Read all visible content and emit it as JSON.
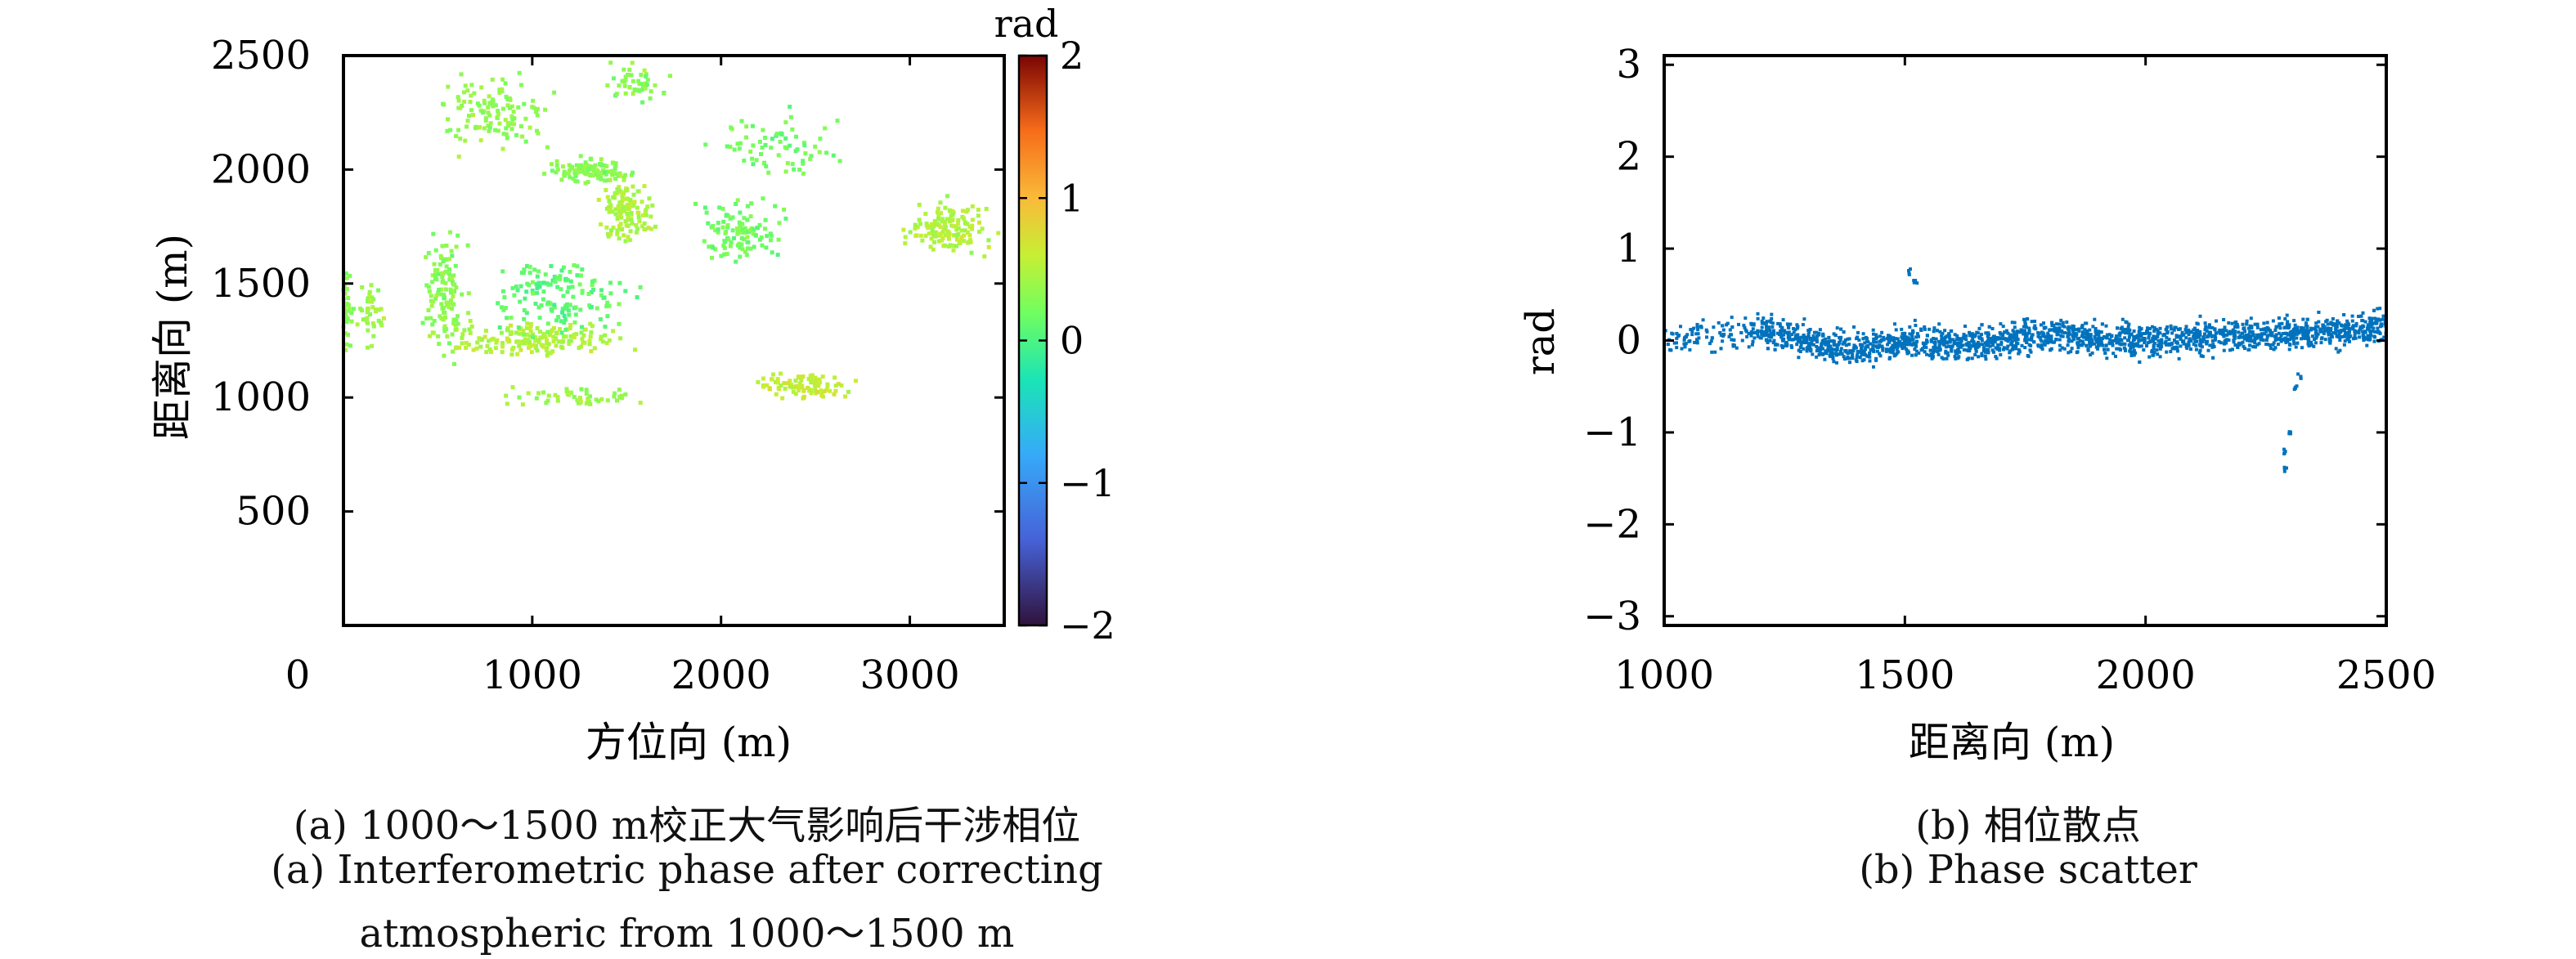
{
  "chart_data": [
    {
      "type": "scatter",
      "panel_label": "(a)",
      "xlabel": "方位向 (m)",
      "ylabel": "距离向 (m)",
      "xlim": [
        0,
        3500
      ],
      "ylim": [
        0,
        2500
      ],
      "x_ticks": [
        "0",
        "1000",
        "2000",
        "3000"
      ],
      "y_ticks": [
        "500",
        "1000",
        "1500",
        "2000",
        "2500"
      ],
      "colorbar": {
        "label": "rad",
        "range": [
          -2,
          2
        ],
        "ticks": [
          "2",
          "1",
          "0",
          "−1",
          "−2"
        ],
        "colormap": "turbo"
      },
      "clusters": [
        {
          "x": 0,
          "y": 1400,
          "dx": 60,
          "dy": 250,
          "value": 0.3,
          "n": 60
        },
        {
          "x": 150,
          "y": 1370,
          "dx": 80,
          "dy": 180,
          "value": 0.4,
          "n": 40
        },
        {
          "x": 550,
          "y": 1450,
          "dx": 160,
          "dy": 350,
          "value": 0.3,
          "n": 120
        },
        {
          "x": 1000,
          "y": 1250,
          "dx": 650,
          "dy": 100,
          "value": 0.5,
          "n": 180
        },
        {
          "x": 1300,
          "y": 2000,
          "dx": 280,
          "dy": 70,
          "value": 0.3,
          "n": 120
        },
        {
          "x": 800,
          "y": 2250,
          "dx": 380,
          "dy": 230,
          "value": 0.35,
          "n": 120
        },
        {
          "x": 1550,
          "y": 2380,
          "dx": 230,
          "dy": 110,
          "value": 0.3,
          "n": 50
        },
        {
          "x": 1500,
          "y": 1820,
          "dx": 180,
          "dy": 180,
          "value": 0.5,
          "n": 130
        },
        {
          "x": 2100,
          "y": 1700,
          "dx": 320,
          "dy": 200,
          "value": 0.2,
          "n": 110
        },
        {
          "x": 2450,
          "y": 1050,
          "dx": 320,
          "dy": 80,
          "value": 0.6,
          "n": 90
        },
        {
          "x": 1150,
          "y": 1450,
          "dx": 500,
          "dy": 230,
          "value": 0.1,
          "n": 150
        },
        {
          "x": 2300,
          "y": 2100,
          "dx": 500,
          "dy": 200,
          "value": 0.2,
          "n": 70
        },
        {
          "x": 3200,
          "y": 1750,
          "dx": 300,
          "dy": 150,
          "value": 0.5,
          "n": 140
        },
        {
          "x": 1200,
          "y": 1000,
          "dx": 500,
          "dy": 60,
          "value": 0.4,
          "n": 50
        }
      ]
    },
    {
      "type": "scatter",
      "panel_label": "(b)",
      "xlabel": "距离向 (m)",
      "ylabel": "rad",
      "xlim": [
        1000,
        2500
      ],
      "ylim": [
        -3.1,
        3.1
      ],
      "x_ticks": [
        "1000",
        "1500",
        "2000",
        "2500"
      ],
      "y_ticks": [
        "3",
        "2",
        "1",
        "0",
        "−1",
        "−2",
        "−3"
      ],
      "point_color": "#0072BD",
      "band_mean": [
        {
          "x": 1000,
          "y": 0.0
        },
        {
          "x": 1200,
          "y": 0.1
        },
        {
          "x": 1400,
          "y": -0.1
        },
        {
          "x": 1500,
          "y": 0.0
        },
        {
          "x": 1600,
          "y": -0.05
        },
        {
          "x": 1800,
          "y": 0.05
        },
        {
          "x": 2000,
          "y": 0.0
        },
        {
          "x": 2200,
          "y": 0.05
        },
        {
          "x": 2400,
          "y": 0.1
        },
        {
          "x": 2500,
          "y": 0.15
        }
      ],
      "band_halfwidth": 0.25,
      "outliers": [
        {
          "x": 2290,
          "y": -1.4
        },
        {
          "x": 2290,
          "y": -1.2
        },
        {
          "x": 2300,
          "y": -1.0
        },
        {
          "x": 1510,
          "y": 0.75
        },
        {
          "x": 1520,
          "y": 0.65
        },
        {
          "x": 2310,
          "y": -0.5
        },
        {
          "x": 2320,
          "y": -0.4
        }
      ]
    }
  ],
  "captions": {
    "a_line1": "(a) 1000～1500 m校正大气影响后干涉相位",
    "a_line2": "(a)  Interferometric phase after correcting",
    "a_line3": "atmospheric from 1000～1500 m",
    "b_line1": "(b) 相位散点",
    "b_line2": "(b) Phase scatter"
  }
}
